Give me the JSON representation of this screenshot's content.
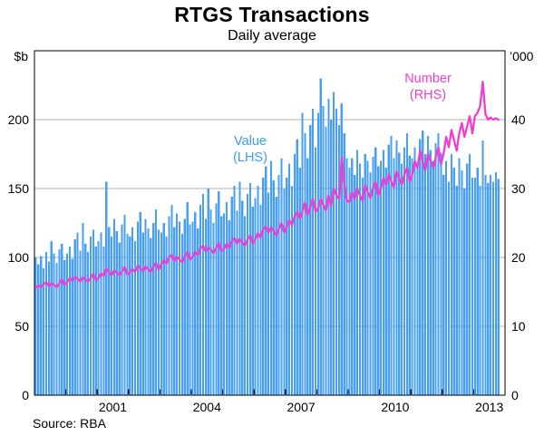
{
  "page": {
    "source": "Source: RBA"
  },
  "colors": {
    "bar": "#47a0f5",
    "line": "#f23cd2",
    "grid": "#b3b3b3",
    "frame": "#000000",
    "value_label": "#3f9bf2",
    "number_label": "#f23cd2",
    "background": "#ffffff"
  },
  "chart_data": {
    "type": "bar",
    "title": "RTGS Transactions",
    "subtitle": "Daily average",
    "grid": true,
    "legend_position": "annotated-inline",
    "x_axis": {
      "frequency": "monthly",
      "start_year": 1999,
      "start_month": 1,
      "range_years": [
        1999,
        2014
      ],
      "tick_years": [
        2000,
        2001,
        2002,
        2003,
        2004,
        2005,
        2006,
        2007,
        2008,
        2009,
        2010,
        2011,
        2012,
        2013
      ],
      "label_years": [
        2001,
        2004,
        2007,
        2010,
        2013
      ]
    },
    "left_axis": {
      "label": "$b",
      "range": [
        0,
        250
      ],
      "ticks": [
        0,
        50,
        100,
        150,
        200
      ]
    },
    "right_axis": {
      "label": "’000",
      "range": [
        0,
        50
      ],
      "ticks": [
        0,
        10,
        20,
        30,
        40
      ]
    },
    "annotations": [
      {
        "text": "Value",
        "sub": "(LHS)"
      },
      {
        "text": "Number",
        "sub": "(RHS)"
      }
    ],
    "series": [
      {
        "name": "Value",
        "axis": "left",
        "unit": "$b",
        "style": "bar",
        "color": "#47a0f5",
        "values": [
          100,
          95,
          101,
          92,
          104,
          97,
          112,
          103,
          96,
          106,
          110,
          98,
          103,
          108,
          99,
          113,
          118,
          105,
          125,
          110,
          104,
          115,
          120,
          108,
          112,
          118,
          108,
          155,
          122,
          115,
          128,
          119,
          111,
          124,
          131,
          117,
          115,
          122,
          112,
          126,
          133,
          118,
          128,
          121,
          114,
          125,
          135,
          120,
          118,
          125,
          115,
          130,
          138,
          122,
          132,
          126,
          117,
          128,
          140,
          124,
          126,
          133,
          121,
          138,
          146,
          128,
          150,
          135,
          125,
          139,
          148,
          130,
          132,
          140,
          127,
          144,
          152,
          134,
          155,
          141,
          130,
          146,
          154,
          137,
          143,
          152,
          138,
          158,
          166,
          147,
          170,
          156,
          144,
          160,
          172,
          150,
          158,
          168,
          152,
          175,
          186,
          165,
          205,
          190,
          172,
          196,
          208,
          180,
          205,
          230,
          210,
          195,
          215,
          200,
          220,
          208,
          196,
          212,
          190,
          172,
          165,
          172,
          160,
          178,
          168,
          158,
          175,
          170,
          162,
          173,
          180,
          166,
          170,
          178,
          165,
          182,
          188,
          172,
          185,
          176,
          168,
          180,
          190,
          174,
          172,
          180,
          168,
          186,
          192,
          175,
          188,
          178,
          170,
          183,
          190,
          176,
          160,
          170,
          155,
          175,
          165,
          152,
          172,
          163,
          150,
          168,
          175,
          158,
          158,
          165,
          152,
          185,
          160,
          154,
          160,
          155,
          162,
          157
        ]
      },
      {
        "name": "Number",
        "axis": "right",
        "unit": "’000",
        "style": "line",
        "color": "#f23cd2",
        "values": [
          15.6,
          15.9,
          15.7,
          16.1,
          16.4,
          15.8,
          16.3,
          16.0,
          15.7,
          16.2,
          16.8,
          16.0,
          16.4,
          17.0,
          16.6,
          17.2,
          16.9,
          16.5,
          17.1,
          16.8,
          16.5,
          17.0,
          17.6,
          16.7,
          17.0,
          17.7,
          17.3,
          18.4,
          17.9,
          17.4,
          18.1,
          17.8,
          17.4,
          18.0,
          18.6,
          17.5,
          17.8,
          18.3,
          17.9,
          18.8,
          18.4,
          18.0,
          18.7,
          18.3,
          17.9,
          18.6,
          19.2,
          18.2,
          19.0,
          19.6,
          19.1,
          20.0,
          20.4,
          19.5,
          20.1,
          19.7,
          19.3,
          20.2,
          20.8,
          19.7,
          20.1,
          20.8,
          20.3,
          21.3,
          21.7,
          20.9,
          21.5,
          21.1,
          20.6,
          21.4,
          22.1,
          20.9,
          21.2,
          22.0,
          21.4,
          22.4,
          22.8,
          22.0,
          22.7,
          22.2,
          21.7,
          22.6,
          23.2,
          22.0,
          22.7,
          23.5,
          22.9,
          24.0,
          24.5,
          23.6,
          24.4,
          23.8,
          23.2,
          24.2,
          25.0,
          23.6,
          24.4,
          25.4,
          24.7,
          26.0,
          26.6,
          25.6,
          26.7,
          28.0,
          26.2,
          27.2,
          28.5,
          26.6,
          27.2,
          28.5,
          27.6,
          26.8,
          29.0,
          27.5,
          30.0,
          29.0,
          28.5,
          34.5,
          30.5,
          28.3,
          28.0,
          29.5,
          28.5,
          30.0,
          29.0,
          28.2,
          30.5,
          29.5,
          28.6,
          30.0,
          31.0,
          29.0,
          30.0,
          31.5,
          30.5,
          32.0,
          31.0,
          30.2,
          32.5,
          31.5,
          30.6,
          32.0,
          33.0,
          31.0,
          32.0,
          34.0,
          33.0,
          35.5,
          34.0,
          32.6,
          35.0,
          34.0,
          33.0,
          34.5,
          36.0,
          33.5,
          35.0,
          37.5,
          36.0,
          38.5,
          37.0,
          35.5,
          38.0,
          39.5,
          37.5,
          39.0,
          40.5,
          38.0,
          40.5,
          41.0,
          42.0,
          45.5,
          40.8,
          40.0,
          40.3,
          40.0,
          40.2,
          40.0
        ]
      }
    ]
  }
}
